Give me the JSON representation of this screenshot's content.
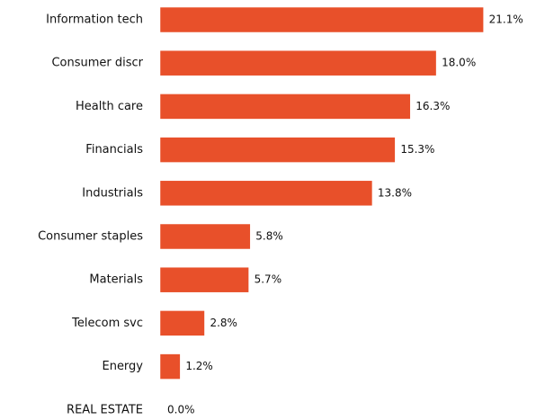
{
  "chart_data": {
    "type": "bar",
    "orientation": "horizontal",
    "color": "#e8502a",
    "categories": [
      "Information tech",
      "Consumer discr",
      "Health care",
      "Financials",
      "Industrials",
      "Consumer staples",
      "Materials",
      "Telecom svc",
      "Energy",
      "REAL ESTATE"
    ],
    "values": [
      21.1,
      18.0,
      16.3,
      15.3,
      13.8,
      5.8,
      5.7,
      2.8,
      1.2,
      0.0
    ],
    "value_labels": [
      "21.1%",
      "18.0%",
      "16.3%",
      "15.3%",
      "13.8%",
      "5.8%",
      "5.7%",
      "2.8%",
      "1.2%",
      "0.0%"
    ]
  }
}
